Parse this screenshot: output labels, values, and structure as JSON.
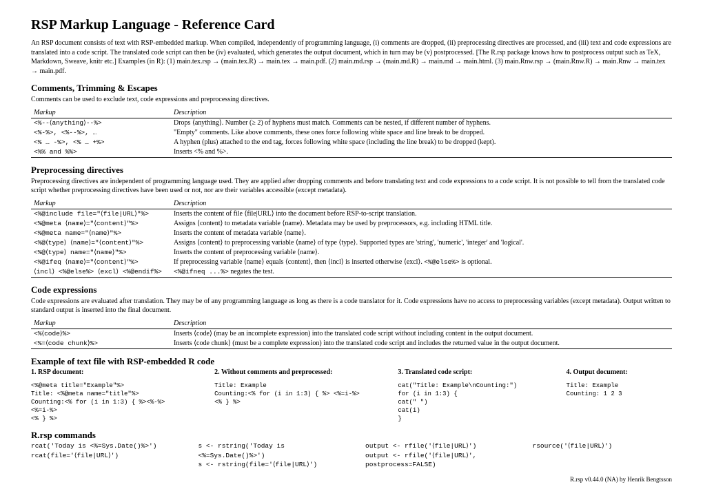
{
  "title": "RSP Markup Language - Reference Card",
  "intro": "An RSP document consists of text with RSP-embedded markup. When compiled, independently of programming language, (i) comments are dropped, (ii) preprocessing directives are processed, and (iii) text and code expressions are translated into a code script. The translated code script can then be (iv) evaluated, which generates the output document, which in turn may be (v) postprocessed. [The R.rsp package knows how to postprocess output such as TeX, Markdown, Sweave, knitr etc.] Examples (in R): (1) main.tex.rsp → (main.tex.R) → main.tex → main.pdf. (2) main.md.rsp → (main.md.R) → main.md → main.html. (3) main.Rnw.rsp → (main.Rnw.R) → main.Rnw → main.tex → main.pdf.",
  "s1": {
    "head": "Comments, Trimming & Escapes",
    "desc": "Comments can be used to exclude text, code expressions and preprocessing directives.",
    "th1": "Markup",
    "th2": "Description",
    "r1a": "<%--⟨anything⟩--%>",
    "r1b": "Drops ⟨anything⟩. Number (≥ 2) of hyphens must match. Comments can be nested, if different number of hyphens.",
    "r2a": "<%-%>, <%--%>, …",
    "r2b": "\"Empty\" comments. Like above comments, these ones force following white space and line break to be dropped.",
    "r3a": "<% … -%>, <% … +%>",
    "r3b": "A hyphen (plus) attached to the end tag, forces following white space (including the line break) to be dropped (kept).",
    "r4a": "<%% and %%>",
    "r4b": "Inserts <% and %>."
  },
  "s2": {
    "head": "Preprocessing directives",
    "desc": "Preprocessing directives are independent of programming language used. They are applied after dropping comments and before translating text and code expressions to a code script. It is not possible to tell from the translated code script whether preprocessing directives have been used or not, nor are their variables accessible (except metadata).",
    "th1": "Markup",
    "th2": "Description",
    "r1a": "<%@include file=\"⟨file|URL⟩\"%>",
    "r1b": "Inserts the content of file ⟨file|URL⟩ into the document before RSP-to-script translation.",
    "r2a": "<%@meta ⟨name⟩=\"⟨content⟩\"%>",
    "r2b": "Assigns ⟨content⟩ to metadata variable ⟨name⟩. Metadata may be used by preprocessors, e.g. including HTML title.",
    "r3a": "<%@meta name=\"⟨name⟩\"%>",
    "r3b": "Inserts the content of metadata variable ⟨name⟩.",
    "r4a": "<%@⟨type⟩ ⟨name⟩=\"⟨content⟩\"%>",
    "r4b": "Assigns ⟨content⟩ to preprocessing variable ⟨name⟩ of type ⟨type⟩. Supported types are 'string', 'numeric', 'integer' and 'logical'.",
    "r5a": "<%@⟨type⟩ name=\"⟨name⟩\"%>",
    "r5b": "Inserts the content of preprocessing variable ⟨name⟩.",
    "r6a": "<%@ifeq ⟨name⟩=\"⟨content⟩\"%>",
    "r6b_pre": "If preprocessing variable ⟨name⟩ equals ⟨content⟩, then ⟨incl⟩ is inserted otherwise ⟨excl⟩. ",
    "r6b_tt": "<%@else%>",
    "r6b_post": " is optional.",
    "r7a": "⟨incl⟩ <%@else%> ⟨excl⟩ <%@endif%>",
    "r7b_tt": "<%@ifneq ...%>",
    "r7b_post": " negates the test."
  },
  "s3": {
    "head": "Code expressions",
    "desc": "Code expressions are evaluated after translation. They may be of any programming language as long as there is a code translator for it. Code expressions have no access to preprocessing variables (except metadata). Output written to standard output is inserted into the final document.",
    "th1": "Markup",
    "th2": "Description",
    "r1a": "<%⟨code⟩%>",
    "r1b": "Inserts ⟨code⟩ (may be an incomplete expression) into the translated code script without including content in the output document.",
    "r2a": "<%=⟨code chunk⟩%>",
    "r2b": "Inserts ⟨code chunk⟩ (must be a complete expression) into the translated code script and includes the returned value in the output document."
  },
  "s4": {
    "head": "Example of text file with RSP-embedded R code",
    "c1h": "1. RSP document:",
    "c2h": "2. Without comments and preprocessed:",
    "c3h": "3. Translated code script:",
    "c4h": "4. Output document:",
    "c1": "<%@meta title=\"Example\"%>\nTitle: <%@meta name=\"title\"%>\nCounting:<% for (i in 1:3) { %><%-%>\n<%=i-%>\n<% } %>",
    "c2": "Title: Example\nCounting:<% for (i in 1:3) { %> <%=i-%>\n<% } %>",
    "c3": "cat(\"Title: Example\\nCounting:\")\nfor (i in 1:3) {\ncat(\" \")\ncat(i)\n}",
    "c4": "Title: Example\nCounting: 1 2 3"
  },
  "s5": {
    "head": "R.rsp commands",
    "c1a": "rcat('Today is <%=Sys.Date()%>')",
    "c1b": "rcat(file='⟨file|URL⟩')",
    "c2a": "s <- rstring('Today is <%=Sys.Date()%>')",
    "c2b": "s <- rstring(file='⟨file|URL⟩')",
    "c3a": "output <- rfile('⟨file|URL⟩')",
    "c3b": "output <- rfile('⟨file|URL⟩', postprocess=FALSE)",
    "c4a": "rsource('⟨file|URL⟩')"
  },
  "footer": "R.rsp v0.44.0 (NA) by Henrik Bengtsson"
}
